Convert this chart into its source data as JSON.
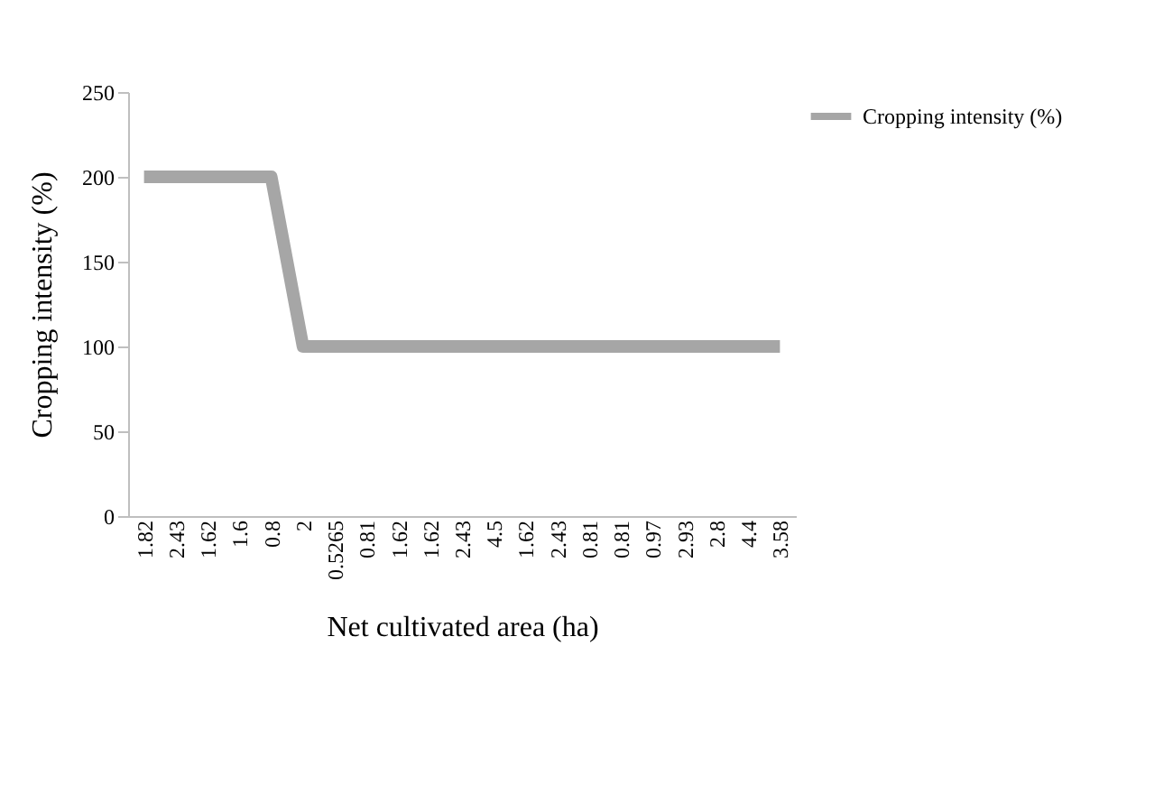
{
  "chart_data": {
    "type": "line",
    "xlabel": "Net cultivated area (ha)",
    "ylabel": "Cropping intensity (%)",
    "categories": [
      "1.82",
      "2.43",
      "1.62",
      "1.6",
      "0.8",
      "2",
      "0.5265",
      "0.81",
      "1.62",
      "1.62",
      "2.43",
      "4.5",
      "1.62",
      "2.43",
      "0.81",
      "0.81",
      "0.97",
      "2.93",
      "2.8",
      "4.4",
      "3.58"
    ],
    "series": [
      {
        "name": "Cropping intensity (%)",
        "color": "#a6a6a6",
        "values": [
          200,
          200,
          200,
          200,
          200,
          100,
          100,
          100,
          100,
          100,
          100,
          100,
          100,
          100,
          100,
          100,
          100,
          100,
          100,
          100,
          100
        ]
      }
    ],
    "ylim": [
      0,
      250
    ],
    "yticks": [
      0,
      50,
      100,
      150,
      200,
      250
    ],
    "grid": false,
    "legend": "right",
    "marker": "none",
    "line_style": "solid"
  }
}
